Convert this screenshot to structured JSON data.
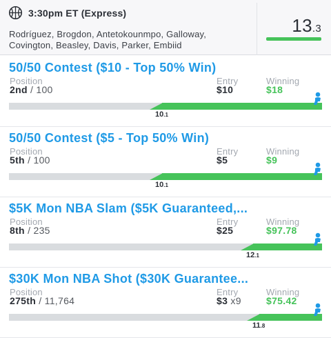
{
  "header": {
    "icon": "basketball-icon",
    "game_time": "3:30pm ET (Express)",
    "players_line1": "Rodríguez, Brogdon, Antetokounmpo, Galloway,",
    "players_line2": "Covington, Beasley, Davis, Parker, Embiid",
    "score_int": "13",
    "score_dec": ".3"
  },
  "colors": {
    "accent_blue": "#1f9ae6",
    "win_green": "#46c35a",
    "track_gray": "#d9dcdf"
  },
  "labels": {
    "position": "Position",
    "entry": "Entry",
    "winning": "Winning"
  },
  "contests": [
    {
      "title": "50/50 Contest ($10 - Top 50% Win)",
      "rank": "2nd",
      "total": "/ 100",
      "entry": "$10",
      "entry_mult": "",
      "winning": "$18",
      "cutoff_int": "10",
      "cutoff_dec": ".1",
      "green_fraction": 0.51
    },
    {
      "title": "50/50 Contest ($5 - Top 50% Win)",
      "rank": "5th",
      "total": "/ 100",
      "entry": "$5",
      "entry_mult": "",
      "winning": "$9",
      "cutoff_int": "10",
      "cutoff_dec": ".1",
      "green_fraction": 0.51
    },
    {
      "title": "$5K Mon NBA Slam ($5K Guaranteed,...",
      "rank": "8th",
      "total": "/ 235",
      "entry": "$25",
      "entry_mult": "",
      "winning": "$97.78",
      "cutoff_int": "12",
      "cutoff_dec": ".1",
      "green_fraction": 0.22
    },
    {
      "title": "$30K Mon NBA Shot ($30K Guarantee...",
      "rank": "275th",
      "total": "/ 11,764",
      "entry": "$3",
      "entry_mult": "x9",
      "winning": "$75.42",
      "cutoff_int": "11",
      "cutoff_dec": ".8",
      "green_fraction": 0.2
    }
  ]
}
